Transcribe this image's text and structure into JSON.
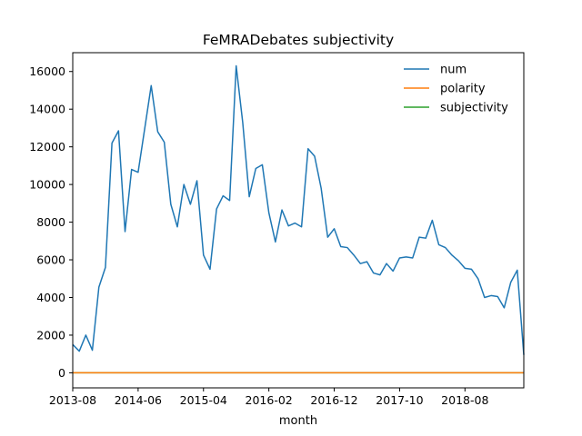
{
  "chart_data": {
    "type": "line",
    "title": "FeMRADebates subjectivity",
    "xlabel": "month",
    "ylabel": "",
    "ylim": [
      -800,
      17000
    ],
    "xlim": [
      "2013-08",
      "2019-05"
    ],
    "grid": false,
    "legend_position": "top-right",
    "x_tick_labels": [
      "2013-08",
      "2014-06",
      "2015-04",
      "2016-02",
      "2016-12",
      "2017-10",
      "2018-08"
    ],
    "y_ticks": [
      0,
      2000,
      4000,
      6000,
      8000,
      10000,
      12000,
      14000,
      16000
    ],
    "x": [
      "2013-08",
      "2013-09",
      "2013-10",
      "2013-11",
      "2013-12",
      "2014-01",
      "2014-02",
      "2014-03",
      "2014-04",
      "2014-05",
      "2014-06",
      "2014-07",
      "2014-08",
      "2014-09",
      "2014-10",
      "2014-11",
      "2014-12",
      "2015-01",
      "2015-02",
      "2015-03",
      "2015-04",
      "2015-05",
      "2015-06",
      "2015-07",
      "2015-08",
      "2015-09",
      "2015-10",
      "2015-11",
      "2015-12",
      "2016-01",
      "2016-02",
      "2016-03",
      "2016-04",
      "2016-05",
      "2016-06",
      "2016-07",
      "2016-08",
      "2016-09",
      "2016-10",
      "2016-11",
      "2016-12",
      "2017-01",
      "2017-02",
      "2017-03",
      "2017-04",
      "2017-05",
      "2017-06",
      "2017-07",
      "2017-08",
      "2017-09",
      "2017-10",
      "2017-11",
      "2017-12",
      "2018-01",
      "2018-02",
      "2018-03",
      "2018-04",
      "2018-05",
      "2018-06",
      "2018-07",
      "2018-08",
      "2018-09",
      "2018-10",
      "2018-11",
      "2018-12",
      "2019-01",
      "2019-02",
      "2019-03",
      "2019-04",
      "2019-05"
    ],
    "series": [
      {
        "name": "num",
        "color": "#1f77b4",
        "values": [
          1500,
          1150,
          2000,
          1200,
          4550,
          5600,
          12200,
          12850,
          7500,
          10800,
          10650,
          12950,
          15250,
          12800,
          12250,
          8950,
          7750,
          10000,
          8950,
          10200,
          6250,
          5500,
          8700,
          9400,
          9150,
          16300,
          13300,
          9350,
          10850,
          11050,
          8500,
          6950,
          8650,
          7800,
          7950,
          7750,
          11900,
          11500,
          9800,
          7200,
          7650,
          6700,
          6650,
          6250,
          5800,
          5900,
          5300,
          5200,
          5800,
          5400,
          6100,
          6150,
          6100,
          7200,
          7150,
          8100,
          6800,
          6650,
          6250,
          5950,
          5550,
          5500,
          5000,
          4000,
          4100,
          4050,
          3450,
          4800,
          5450,
          950
        ]
      },
      {
        "name": "polarity",
        "color": "#ff7f0e",
        "values": [
          0,
          0,
          0,
          0,
          0,
          0,
          0,
          0,
          0,
          0,
          0,
          0,
          0,
          0,
          0,
          0,
          0,
          0,
          0,
          0,
          0,
          0,
          0,
          0,
          0,
          0,
          0,
          0,
          0,
          0,
          0,
          0,
          0,
          0,
          0,
          0,
          0,
          0,
          0,
          0,
          0,
          0,
          0,
          0,
          0,
          0,
          0,
          0,
          0,
          0,
          0,
          0,
          0,
          0,
          0,
          0,
          0,
          0,
          0,
          0,
          0,
          0,
          0,
          0,
          0,
          0,
          0,
          0,
          0,
          0
        ]
      },
      {
        "name": "subjectivity",
        "color": "#2ca02c",
        "values": [
          0,
          0,
          0,
          0,
          0,
          0,
          0,
          0,
          0,
          0,
          0,
          0,
          0,
          0,
          0,
          0,
          0,
          0,
          0,
          0,
          0,
          0,
          0,
          0,
          0,
          0,
          0,
          0,
          0,
          0,
          0,
          0,
          0,
          0,
          0,
          0,
          0,
          0,
          0,
          0,
          0,
          0,
          0,
          0,
          0,
          0,
          0,
          0,
          0,
          0,
          0,
          0,
          0,
          0,
          0,
          0,
          0,
          0,
          0,
          0,
          0,
          0,
          0,
          0,
          0,
          0,
          0,
          0,
          0,
          0
        ]
      }
    ]
  }
}
